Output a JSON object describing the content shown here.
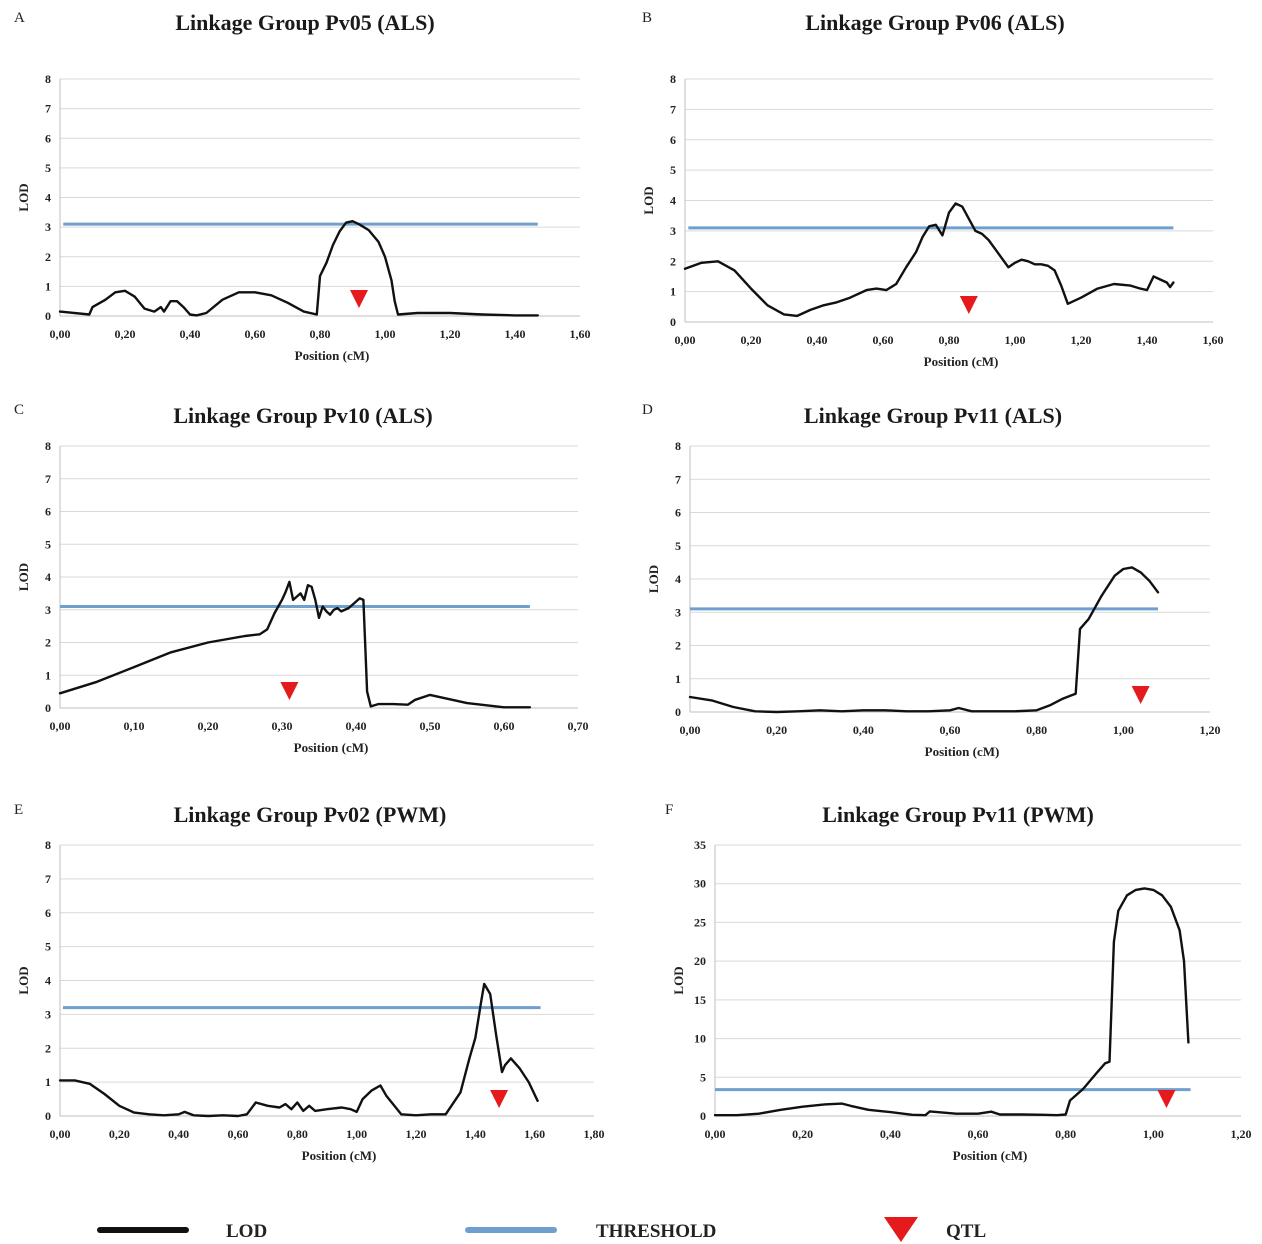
{
  "colors": {
    "lod": "#111111",
    "threshold": "#6f9fcf",
    "qtl": "#e41a1c",
    "grid": "#d9d9d9"
  },
  "legend": {
    "lod_label": "LOD",
    "threshold_label": "THRESHOLD",
    "qtl_label": "QTL"
  },
  "chart_data": [
    {
      "type": "line",
      "panel": "A",
      "title": "Linkage Group Pv05 (ALS)",
      "xlabel": "Position (cM)",
      "ylabel": "LOD",
      "xlim": [
        0,
        1.6
      ],
      "ylim": [
        0,
        8
      ],
      "x_ticks": [
        "0,00",
        "0,20",
        "0,40",
        "0,60",
        "0,80",
        "1,00",
        "1,20",
        "1,40",
        "1,60"
      ],
      "y_ticks": [
        "0",
        "1",
        "2",
        "3",
        "4",
        "5",
        "6",
        "7",
        "8"
      ],
      "threshold": {
        "value": 3.1,
        "x_start": 0.01,
        "x_end": 1.47
      },
      "qtl": 0.92,
      "lod": {
        "x": [
          0,
          0.09,
          0.1,
          0.14,
          0.17,
          0.2,
          0.23,
          0.26,
          0.29,
          0.31,
          0.32,
          0.34,
          0.36,
          0.38,
          0.4,
          0.42,
          0.45,
          0.5,
          0.55,
          0.6,
          0.65,
          0.7,
          0.75,
          0.79,
          0.8,
          0.82,
          0.84,
          0.86,
          0.88,
          0.9,
          0.92,
          0.95,
          0.98,
          1.0,
          1.02,
          1.03,
          1.04,
          1.1,
          1.2,
          1.3,
          1.4,
          1.47
        ],
        "y": [
          0.15,
          0.05,
          0.3,
          0.55,
          0.8,
          0.85,
          0.65,
          0.25,
          0.15,
          0.3,
          0.15,
          0.5,
          0.5,
          0.3,
          0.05,
          0.02,
          0.1,
          0.55,
          0.8,
          0.8,
          0.7,
          0.45,
          0.15,
          0.05,
          1.35,
          1.8,
          2.4,
          2.85,
          3.15,
          3.2,
          3.1,
          2.9,
          2.5,
          2.0,
          1.2,
          0.5,
          0.05,
          0.1,
          0.1,
          0.05,
          0.02,
          0.02
        ]
      }
    },
    {
      "type": "line",
      "panel": "B",
      "title": "Linkage Group Pv06 (ALS)",
      "xlabel": "Position (cM)",
      "ylabel": "LOD",
      "xlim": [
        0,
        1.6
      ],
      "ylim": [
        0,
        8
      ],
      "x_ticks": [
        "0,00",
        "0,20",
        "0,40",
        "0,60",
        "0,80",
        "1,00",
        "1,20",
        "1,40",
        "1,60"
      ],
      "y_ticks": [
        "0",
        "1",
        "2",
        "3",
        "4",
        "5",
        "6",
        "7",
        "8"
      ],
      "threshold": {
        "value": 3.1,
        "x_start": 0.01,
        "x_end": 1.48
      },
      "qtl": 0.86,
      "lod": {
        "x": [
          0,
          0.05,
          0.1,
          0.15,
          0.2,
          0.25,
          0.3,
          0.34,
          0.38,
          0.42,
          0.46,
          0.5,
          0.55,
          0.58,
          0.61,
          0.64,
          0.67,
          0.7,
          0.72,
          0.74,
          0.76,
          0.78,
          0.8,
          0.82,
          0.84,
          0.86,
          0.88,
          0.9,
          0.92,
          0.94,
          0.96,
          0.98,
          1.0,
          1.02,
          1.04,
          1.06,
          1.08,
          1.1,
          1.12,
          1.14,
          1.16,
          1.2,
          1.25,
          1.3,
          1.35,
          1.38,
          1.4,
          1.42,
          1.44,
          1.46,
          1.47,
          1.48
        ],
        "y": [
          1.75,
          1.95,
          2.0,
          1.7,
          1.1,
          0.55,
          0.25,
          0.2,
          0.4,
          0.55,
          0.65,
          0.8,
          1.05,
          1.1,
          1.05,
          1.25,
          1.8,
          2.3,
          2.8,
          3.15,
          3.2,
          2.85,
          3.6,
          3.9,
          3.8,
          3.4,
          3.0,
          2.9,
          2.7,
          2.4,
          2.1,
          1.8,
          1.95,
          2.05,
          2.0,
          1.9,
          1.9,
          1.85,
          1.7,
          1.2,
          0.6,
          0.8,
          1.1,
          1.25,
          1.2,
          1.1,
          1.05,
          1.5,
          1.4,
          1.3,
          1.15,
          1.3
        ]
      }
    },
    {
      "type": "line",
      "panel": "C",
      "title": "Linkage Group Pv10 (ALS)",
      "xlabel": "Position (cM)",
      "ylabel": "LOD",
      "xlim": [
        0,
        0.7
      ],
      "ylim": [
        0,
        8
      ],
      "x_ticks": [
        "0,00",
        "0,10",
        "0,20",
        "0,30",
        "0,40",
        "0,50",
        "0,60",
        "0,70"
      ],
      "y_ticks": [
        "0",
        "1",
        "2",
        "3",
        "4",
        "5",
        "6",
        "7",
        "8"
      ],
      "threshold": {
        "value": 3.1,
        "x_start": 0.0,
        "x_end": 0.635
      },
      "qtl": 0.31,
      "lod": {
        "x": [
          0,
          0.05,
          0.1,
          0.15,
          0.2,
          0.25,
          0.27,
          0.28,
          0.29,
          0.3,
          0.305,
          0.31,
          0.315,
          0.32,
          0.325,
          0.33,
          0.335,
          0.34,
          0.345,
          0.35,
          0.355,
          0.36,
          0.365,
          0.37,
          0.375,
          0.38,
          0.39,
          0.4,
          0.405,
          0.41,
          0.415,
          0.42,
          0.43,
          0.45,
          0.47,
          0.48,
          0.5,
          0.55,
          0.6,
          0.635
        ],
        "y": [
          0.45,
          0.8,
          1.25,
          1.7,
          2.0,
          2.2,
          2.25,
          2.4,
          2.9,
          3.3,
          3.55,
          3.85,
          3.3,
          3.4,
          3.5,
          3.3,
          3.75,
          3.7,
          3.3,
          2.75,
          3.1,
          2.95,
          2.85,
          3.0,
          3.05,
          2.95,
          3.05,
          3.25,
          3.35,
          3.3,
          0.5,
          0.05,
          0.12,
          0.12,
          0.1,
          0.25,
          0.4,
          0.15,
          0.02,
          0.02
        ]
      }
    },
    {
      "type": "line",
      "panel": "D",
      "title": "Linkage Group Pv11 (ALS)",
      "xlabel": "Position (cM)",
      "ylabel": "LOD",
      "xlim": [
        0,
        1.2
      ],
      "ylim": [
        0,
        8
      ],
      "x_ticks": [
        "0,00",
        "0,20",
        "0,40",
        "0,60",
        "0,80",
        "1,00",
        "1,20"
      ],
      "y_ticks": [
        "0",
        "1",
        "2",
        "3",
        "4",
        "5",
        "6",
        "7",
        "8"
      ],
      "threshold": {
        "value": 3.1,
        "x_start": 0.0,
        "x_end": 1.08
      },
      "qtl": 1.04,
      "lod": {
        "x": [
          0,
          0.05,
          0.1,
          0.15,
          0.2,
          0.25,
          0.3,
          0.35,
          0.4,
          0.45,
          0.5,
          0.55,
          0.6,
          0.62,
          0.65,
          0.7,
          0.75,
          0.8,
          0.83,
          0.86,
          0.88,
          0.89,
          0.9,
          0.92,
          0.95,
          0.98,
          1.0,
          1.02,
          1.04,
          1.06,
          1.08
        ],
        "y": [
          0.45,
          0.35,
          0.15,
          0.02,
          0.0,
          0.02,
          0.05,
          0.02,
          0.05,
          0.05,
          0.02,
          0.02,
          0.05,
          0.12,
          0.02,
          0.02,
          0.02,
          0.05,
          0.2,
          0.4,
          0.5,
          0.55,
          2.5,
          2.8,
          3.5,
          4.1,
          4.3,
          4.35,
          4.2,
          3.95,
          3.6
        ]
      }
    },
    {
      "type": "line",
      "panel": "E",
      "title": "Linkage Group Pv02 (PWM)",
      "xlabel": "Position (cM)",
      "ylabel": "LOD",
      "xlim": [
        0,
        1.8
      ],
      "ylim": [
        0,
        8
      ],
      "x_ticks": [
        "0,00",
        "0,20",
        "0,40",
        "0,60",
        "0,80",
        "1,00",
        "1,20",
        "1,40",
        "1,60",
        "1,80"
      ],
      "y_ticks": [
        "0",
        "1",
        "2",
        "3",
        "4",
        "5",
        "6",
        "7",
        "8"
      ],
      "threshold": {
        "value": 3.2,
        "x_start": 0.01,
        "x_end": 1.62
      },
      "qtl": 1.48,
      "lod": {
        "x": [
          0,
          0.05,
          0.1,
          0.15,
          0.2,
          0.25,
          0.3,
          0.35,
          0.4,
          0.42,
          0.45,
          0.5,
          0.55,
          0.6,
          0.63,
          0.66,
          0.7,
          0.74,
          0.76,
          0.78,
          0.8,
          0.82,
          0.84,
          0.86,
          0.9,
          0.95,
          0.98,
          1.0,
          1.02,
          1.05,
          1.08,
          1.1,
          1.15,
          1.2,
          1.25,
          1.3,
          1.35,
          1.38,
          1.4,
          1.42,
          1.43,
          1.45,
          1.47,
          1.49,
          1.5,
          1.52,
          1.55,
          1.58,
          1.61
        ],
        "y": [
          1.05,
          1.05,
          0.95,
          0.65,
          0.3,
          0.1,
          0.05,
          0.02,
          0.05,
          0.12,
          0.02,
          0.0,
          0.02,
          0.0,
          0.05,
          0.4,
          0.3,
          0.25,
          0.35,
          0.2,
          0.4,
          0.15,
          0.3,
          0.15,
          0.2,
          0.25,
          0.2,
          0.12,
          0.5,
          0.75,
          0.9,
          0.6,
          0.05,
          0.02,
          0.05,
          0.05,
          0.7,
          1.7,
          2.3,
          3.4,
          3.9,
          3.6,
          2.4,
          1.3,
          1.5,
          1.7,
          1.4,
          1.0,
          0.45
        ]
      }
    },
    {
      "type": "line",
      "panel": "F",
      "title": "Linkage Group Pv11 (PWM)",
      "xlabel": "Position (cM)",
      "ylabel": "LOD",
      "xlim": [
        0,
        1.2
      ],
      "ylim": [
        0,
        35
      ],
      "x_ticks": [
        "0,00",
        "0,20",
        "0,40",
        "0,60",
        "0,80",
        "1,00",
        "1,20"
      ],
      "y_ticks": [
        "0",
        "5",
        "10",
        "15",
        "20",
        "25",
        "30",
        "35"
      ],
      "threshold": {
        "value": 3.4,
        "x_start": 0.0,
        "x_end": 1.085
      },
      "qtl": 1.03,
      "lod": {
        "x": [
          0,
          0.05,
          0.1,
          0.15,
          0.2,
          0.25,
          0.29,
          0.31,
          0.35,
          0.4,
          0.45,
          0.48,
          0.49,
          0.55,
          0.6,
          0.63,
          0.65,
          0.7,
          0.75,
          0.78,
          0.8,
          0.81,
          0.84,
          0.87,
          0.89,
          0.9,
          0.91,
          0.92,
          0.94,
          0.96,
          0.98,
          1.0,
          1.02,
          1.04,
          1.06,
          1.07,
          1.08
        ],
        "y": [
          0.1,
          0.1,
          0.3,
          0.8,
          1.2,
          1.5,
          1.6,
          1.3,
          0.8,
          0.5,
          0.15,
          0.1,
          0.6,
          0.3,
          0.3,
          0.55,
          0.2,
          0.2,
          0.15,
          0.1,
          0.2,
          2.0,
          3.5,
          5.5,
          6.8,
          7.0,
          22.5,
          26.5,
          28.5,
          29.2,
          29.4,
          29.2,
          28.5,
          27.0,
          24.0,
          20.0,
          9.5
        ]
      }
    }
  ]
}
